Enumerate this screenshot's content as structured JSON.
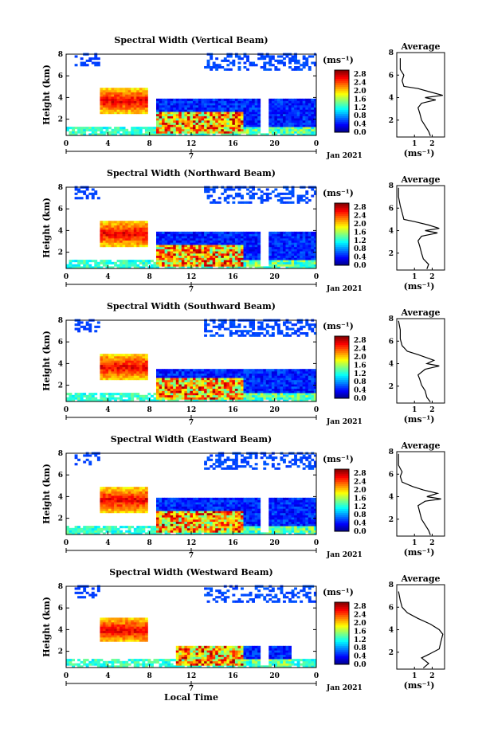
{
  "chart_data": {
    "type": "heatmap",
    "xlabel": "Local Time",
    "x_ticks": [
      "0",
      "4",
      "8",
      "12",
      "16",
      "20",
      "0"
    ],
    "x_range": [
      0,
      24
    ],
    "date_marker": "7",
    "date_label": "Jan 2021",
    "ylabel": "Height (km)",
    "y_ticks": [
      "2",
      "4",
      "6",
      "8"
    ],
    "y_range": [
      0.5,
      8
    ],
    "colorbar": {
      "unit": "(ms⁻¹)",
      "ticks": [
        "0.0",
        "0.4",
        "0.8",
        "1.2",
        "1.6",
        "2.0",
        "2.4",
        "2.8"
      ],
      "range": [
        0,
        3.0
      ],
      "colormap": "jet"
    },
    "profile": {
      "title": "Average",
      "xlabel": "(ms⁻¹)",
      "x_ticks": [
        "1",
        "2"
      ],
      "y_ticks": [
        "2",
        "4",
        "6",
        "8"
      ]
    },
    "panels": [
      {
        "title": "Spectral Width (Vertical Beam)",
        "profile_points": [
          [
            1.9,
            0.6
          ],
          [
            1.8,
            1.0
          ],
          [
            1.6,
            1.5
          ],
          [
            1.4,
            2.0
          ],
          [
            1.3,
            2.6
          ],
          [
            1.2,
            3.1
          ],
          [
            1.4,
            3.5
          ],
          [
            2.2,
            3.8
          ],
          [
            1.6,
            4.0
          ],
          [
            2.6,
            4.2
          ],
          [
            1.9,
            4.5
          ],
          [
            1.2,
            4.8
          ],
          [
            0.4,
            5.0
          ],
          [
            0.3,
            5.5
          ],
          [
            0.4,
            6.0
          ],
          [
            0.2,
            6.5
          ],
          [
            0.2,
            7.5
          ]
        ]
      },
      {
        "title": "Spectral Width (Northward Beam)",
        "profile_points": [
          [
            1.7,
            0.6
          ],
          [
            1.8,
            1.0
          ],
          [
            1.5,
            1.5
          ],
          [
            1.4,
            2.0
          ],
          [
            1.3,
            2.6
          ],
          [
            1.2,
            3.1
          ],
          [
            1.4,
            3.5
          ],
          [
            2.3,
            3.8
          ],
          [
            1.6,
            4.0
          ],
          [
            2.4,
            4.2
          ],
          [
            1.8,
            4.5
          ],
          [
            1.0,
            4.8
          ],
          [
            0.4,
            5.0
          ],
          [
            0.3,
            5.6
          ],
          [
            0.2,
            6.2
          ],
          [
            0.1,
            7.0
          ],
          [
            0.1,
            7.8
          ]
        ]
      },
      {
        "title": "Spectral Width (Southward Beam)",
        "profile_points": [
          [
            1.9,
            0.6
          ],
          [
            1.7,
            1.0
          ],
          [
            1.6,
            1.6
          ],
          [
            1.4,
            2.1
          ],
          [
            1.3,
            2.6
          ],
          [
            1.2,
            3.0
          ],
          [
            1.6,
            3.5
          ],
          [
            2.4,
            3.8
          ],
          [
            1.7,
            4.0
          ],
          [
            2.1,
            4.3
          ],
          [
            1.2,
            4.8
          ],
          [
            0.6,
            5.1
          ],
          [
            0.3,
            5.6
          ],
          [
            0.2,
            6.2
          ],
          [
            0.2,
            7.0
          ],
          [
            0.1,
            7.8
          ]
        ]
      },
      {
        "title": "Spectral Width (Eastward Beam)",
        "profile_points": [
          [
            1.9,
            0.6
          ],
          [
            1.8,
            1.0
          ],
          [
            1.6,
            1.5
          ],
          [
            1.4,
            2.0
          ],
          [
            1.3,
            2.6
          ],
          [
            1.2,
            3.2
          ],
          [
            1.6,
            3.6
          ],
          [
            2.5,
            3.8
          ],
          [
            1.7,
            4.0
          ],
          [
            2.3,
            4.3
          ],
          [
            1.5,
            4.6
          ],
          [
            0.9,
            4.9
          ],
          [
            0.3,
            5.3
          ],
          [
            0.2,
            5.8
          ],
          [
            0.3,
            6.2
          ],
          [
            0.1,
            6.8
          ],
          [
            0.1,
            7.8
          ]
        ]
      },
      {
        "title": "Spectral Width (Westward Beam)",
        "profile_points": [
          [
            1.5,
            0.6
          ],
          [
            1.8,
            1.0
          ],
          [
            1.4,
            1.5
          ],
          [
            1.8,
            1.8
          ],
          [
            2.4,
            2.3
          ],
          [
            2.5,
            3.0
          ],
          [
            2.6,
            3.6
          ],
          [
            2.4,
            4.0
          ],
          [
            1.9,
            4.5
          ],
          [
            1.2,
            5.0
          ],
          [
            0.6,
            5.5
          ],
          [
            0.3,
            6.0
          ],
          [
            0.2,
            6.6
          ],
          [
            0.1,
            7.4
          ]
        ]
      }
    ]
  }
}
